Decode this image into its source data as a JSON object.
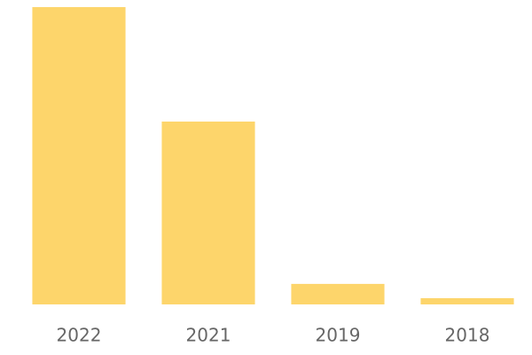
{
  "chart_data": {
    "type": "bar",
    "categories": [
      "2022",
      "2021",
      "2019",
      "2018"
    ],
    "values": [
      100,
      61.5,
      6.9,
      2.1
    ],
    "color": "#fdd56b",
    "ylim": [
      0,
      100
    ]
  }
}
